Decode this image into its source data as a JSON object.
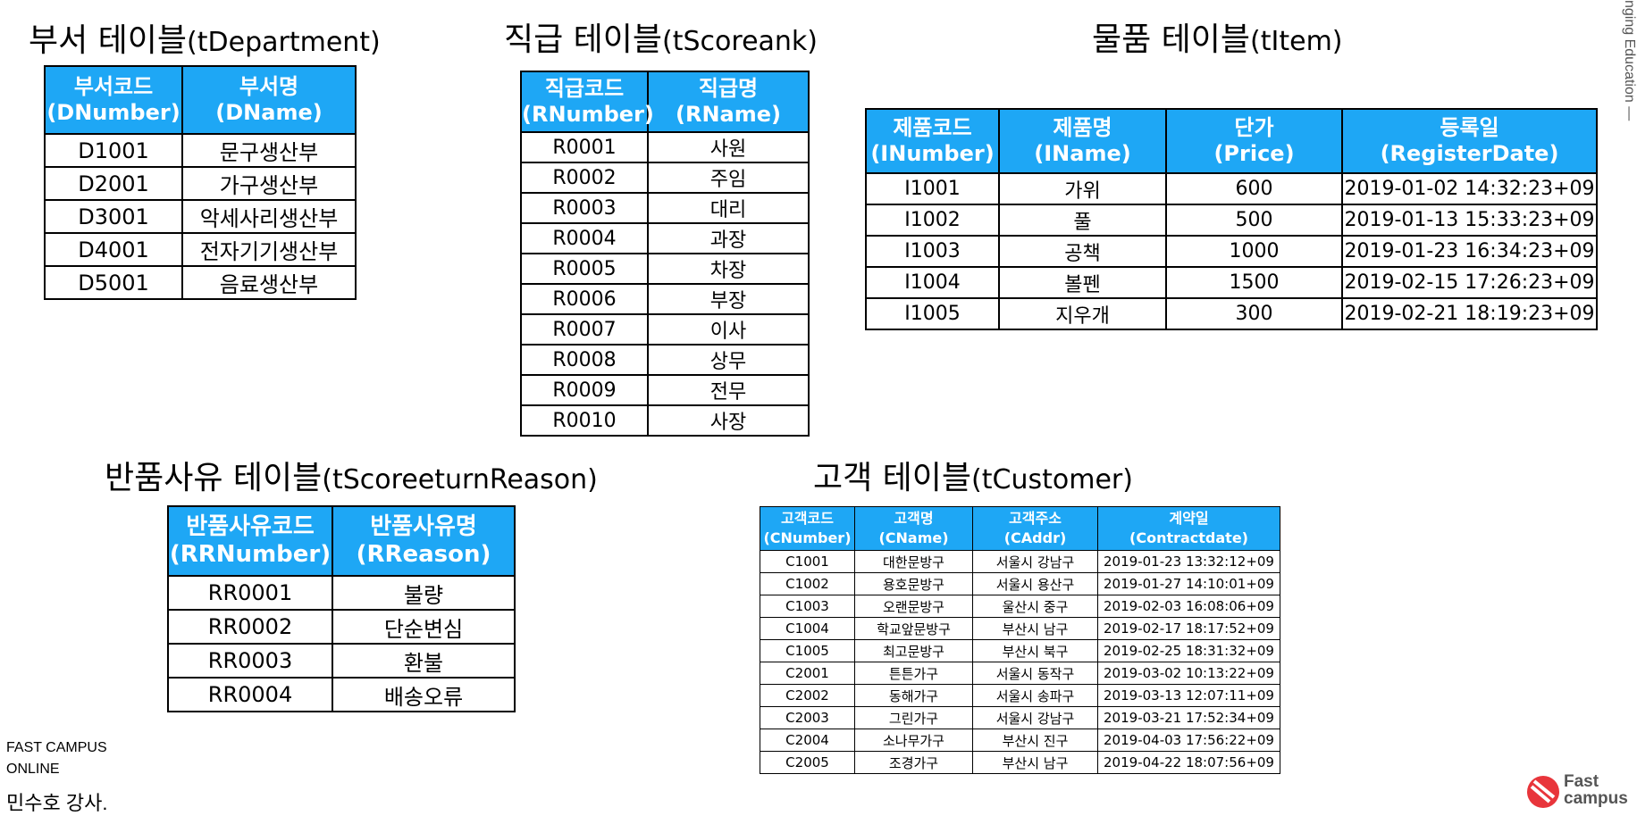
{
  "dept": {
    "title_ko": "부서 테이블",
    "title_en": "(tDepartment)",
    "headers": [
      [
        "부서코드",
        "(DNumber)"
      ],
      [
        "부서명",
        "(DName)"
      ]
    ],
    "rows": [
      [
        "D1001",
        "문구생산부"
      ],
      [
        "D2001",
        "가구생산부"
      ],
      [
        "D3001",
        "악세사리생산부"
      ],
      [
        "D4001",
        "전자기기생산부"
      ],
      [
        "D5001",
        "음료생산부"
      ]
    ]
  },
  "rank": {
    "title_ko": "직급 테이블",
    "title_en": "(tScoreank)",
    "headers": [
      [
        "직급코드",
        "(RNumber)"
      ],
      [
        "직급명",
        "(RName)"
      ]
    ],
    "rows": [
      [
        "R0001",
        "사원"
      ],
      [
        "R0002",
        "주임"
      ],
      [
        "R0003",
        "대리"
      ],
      [
        "R0004",
        "과장"
      ],
      [
        "R0005",
        "차장"
      ],
      [
        "R0006",
        "부장"
      ],
      [
        "R0007",
        "이사"
      ],
      [
        "R0008",
        "상무"
      ],
      [
        "R0009",
        "전무"
      ],
      [
        "R0010",
        "사장"
      ]
    ]
  },
  "item": {
    "title_ko": "물품 테이블",
    "title_en": "(tItem)",
    "headers": [
      [
        "제품코드",
        "(INumber)"
      ],
      [
        "제품명",
        "(IName)"
      ],
      [
        "단가",
        "(Price)"
      ],
      [
        "등록일",
        "(RegisterDate)"
      ]
    ],
    "rows": [
      [
        "I1001",
        "가위",
        "600",
        "2019-01-02 14:32:23+09"
      ],
      [
        "I1002",
        "풀",
        "500",
        "2019-01-13 15:33:23+09"
      ],
      [
        "I1003",
        "공책",
        "1000",
        "2019-01-23 16:34:23+09"
      ],
      [
        "I1004",
        "볼펜",
        "1500",
        "2019-02-15 17:26:23+09"
      ],
      [
        "I1005",
        "지우개",
        "300",
        "2019-02-21 18:19:23+09"
      ]
    ]
  },
  "reason": {
    "title_ko": "반품사유 테이블",
    "title_en": "(tScoreeturnReason)",
    "headers": [
      [
        "반품사유코드",
        "(RRNumber)"
      ],
      [
        "반품사유명",
        "(RReason)"
      ]
    ],
    "rows": [
      [
        "RR0001",
        "불량"
      ],
      [
        "RR0002",
        "단순변심"
      ],
      [
        "RR0003",
        "환불"
      ],
      [
        "RR0004",
        "배송오류"
      ]
    ]
  },
  "customer": {
    "title_ko": "고객 테이블",
    "title_en": "(tCustomer)",
    "headers": [
      [
        "고객코드",
        "(CNumber)"
      ],
      [
        "고객명",
        "(CName)"
      ],
      [
        "고객주소",
        "(CAddr)"
      ],
      [
        "계약일",
        "(Contractdate)"
      ]
    ],
    "rows": [
      [
        "C1001",
        "대한문방구",
        "서울시 강남구",
        "2019-01-23 13:32:12+09"
      ],
      [
        "C1002",
        "용호문방구",
        "서울시 용산구",
        "2019-01-27 14:10:01+09"
      ],
      [
        "C1003",
        "오랜문방구",
        "울산시 중구",
        "2019-02-03 16:08:06+09"
      ],
      [
        "C1004",
        "학교앞문방구",
        "부산시 남구",
        "2019-02-17 18:17:52+09"
      ],
      [
        "C1005",
        "최고문방구",
        "부산시 북구",
        "2019-02-25 18:31:32+09"
      ],
      [
        "C2001",
        "튼튼가구",
        "서울시 동작구",
        "2019-03-02 10:13:22+09"
      ],
      [
        "C2002",
        "동해가구",
        "서울시 송파구",
        "2019-03-13 12:07:11+09"
      ],
      [
        "C2003",
        "그린가구",
        "서울시 강남구",
        "2019-03-21 17:52:34+09"
      ],
      [
        "C2004",
        "소나무가구",
        "부산시 진구",
        "2019-04-03 17:56:22+09"
      ],
      [
        "C2005",
        "조경가구",
        "부산시 남구",
        "2019-04-22 18:07:56+09"
      ]
    ]
  },
  "footer": {
    "brand_line1": "FAST CAMPUS",
    "brand_line2": "ONLINE",
    "instructor": "민수호 강사."
  },
  "side_text": "nging Education —",
  "logo": {
    "line1": "Fast",
    "line2": "campus",
    "icon": "fastcampus-logo-icon",
    "color": "#e8353b"
  },
  "colors": {
    "header_bg": "#1ea7f5",
    "header_text": "#ffffff",
    "border": "#000000"
  }
}
